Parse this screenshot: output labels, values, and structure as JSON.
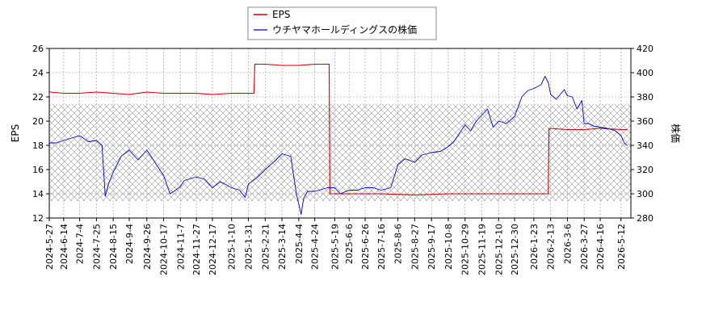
{
  "chart_data": {
    "type": "line",
    "title": "",
    "legend": {
      "placement": "top-center",
      "entries": [
        {
          "name": "EPS",
          "color": "#cc0000"
        },
        {
          "name": "ウチヤマホールディングスの株価",
          "color": "#0000cc"
        }
      ]
    },
    "x_ticks": [
      "2024-5-27",
      "2024-6-14",
      "2024-7-4",
      "2024-7-25",
      "2024-8-15",
      "2024-9-4",
      "2024-9-26",
      "2024-10-17",
      "2024-11-7",
      "2024-11-27",
      "2024-12-17",
      "2025-1-10",
      "2025-1-31",
      "2025-2-21",
      "2025-3-14",
      "2025-4-4",
      "2025-4-24",
      "2025-5-19",
      "2025-6-6",
      "2025-6-26",
      "2025-7-16",
      "2025-8-6",
      "2025-8-27",
      "2025-9-17",
      "2025-10-8",
      "2025-10-29",
      "2025-11-19",
      "2025-12-10",
      "2025-12-30",
      "2026-1-23",
      "2026-2-13",
      "2026-3-6",
      "2026-3-27",
      "2026-4-16",
      "2026-5-12"
    ],
    "y_left": {
      "label": "EPS",
      "ylim": [
        12,
        26
      ],
      "ticks": [
        12,
        14,
        16,
        18,
        20,
        22,
        24,
        26
      ]
    },
    "y_right": {
      "label": "株価",
      "ylim": [
        280,
        420
      ],
      "ticks": [
        280,
        300,
        320,
        340,
        360,
        380,
        400,
        420
      ]
    },
    "shaded_band": {
      "axis": "right",
      "range": [
        294,
        374
      ]
    },
    "grid": true,
    "series": [
      {
        "name": "EPS",
        "axis": "left",
        "color": "#cc0000",
        "points": [
          [
            "2024-5-27",
            22.4
          ],
          [
            "2024-6-14",
            22.3
          ],
          [
            "2024-7-4",
            22.3
          ],
          [
            "2024-7-25",
            22.4
          ],
          [
            "2024-8-15",
            22.3
          ],
          [
            "2024-9-4",
            22.2
          ],
          [
            "2024-9-26",
            22.4
          ],
          [
            "2024-10-17",
            22.3
          ],
          [
            "2024-11-7",
            22.3
          ],
          [
            "2024-11-27",
            22.3
          ],
          [
            "2024-12-17",
            22.2
          ],
          [
            "2025-1-10",
            22.3
          ],
          [
            "2025-1-31",
            22.3
          ],
          [
            "2025-2-7",
            22.3
          ],
          [
            "2025-2-8",
            24.7
          ],
          [
            "2025-2-21",
            24.7
          ],
          [
            "2025-3-14",
            24.6
          ],
          [
            "2025-4-4",
            24.6
          ],
          [
            "2025-4-24",
            24.7
          ],
          [
            "2025-5-12",
            24.7
          ],
          [
            "2025-5-13",
            14.0
          ],
          [
            "2025-5-19",
            14.0
          ],
          [
            "2025-6-6",
            14.0
          ],
          [
            "2025-7-16",
            14.0
          ],
          [
            "2025-8-27",
            13.9
          ],
          [
            "2025-10-8",
            14.0
          ],
          [
            "2025-11-19",
            14.0
          ],
          [
            "2025-12-30",
            14.0
          ],
          [
            "2026-2-10",
            14.0
          ],
          [
            "2026-2-11",
            19.4
          ],
          [
            "2026-3-6",
            19.3
          ],
          [
            "2026-3-27",
            19.3
          ],
          [
            "2026-4-16",
            19.4
          ],
          [
            "2026-5-12",
            19.3
          ],
          [
            "2026-5-20",
            19.3
          ]
        ]
      },
      {
        "name": "ウチヤマホールディングスの株価",
        "axis": "right",
        "color": "#0000cc",
        "points": [
          [
            "2024-5-27",
            342
          ],
          [
            "2024-6-5",
            342
          ],
          [
            "2024-6-14",
            344
          ],
          [
            "2024-6-24",
            346
          ],
          [
            "2024-7-4",
            348
          ],
          [
            "2024-7-15",
            343
          ],
          [
            "2024-7-25",
            344
          ],
          [
            "2024-8-1",
            340
          ],
          [
            "2024-8-5",
            298
          ],
          [
            "2024-8-9",
            308
          ],
          [
            "2024-8-15",
            318
          ],
          [
            "2024-8-25",
            331
          ],
          [
            "2024-9-4",
            336
          ],
          [
            "2024-9-15",
            328
          ],
          [
            "2024-9-26",
            336
          ],
          [
            "2024-10-6",
            326
          ],
          [
            "2024-10-17",
            315
          ],
          [
            "2024-10-25",
            300
          ],
          [
            "2024-11-1",
            303
          ],
          [
            "2024-11-7",
            306
          ],
          [
            "2024-11-12",
            311
          ],
          [
            "2024-11-27",
            314
          ],
          [
            "2024-12-7",
            312
          ],
          [
            "2024-12-17",
            305
          ],
          [
            "2024-12-27",
            310
          ],
          [
            "2025-1-10",
            305
          ],
          [
            "2025-1-20",
            303
          ],
          [
            "2025-1-27",
            297
          ],
          [
            "2025-1-31",
            308
          ],
          [
            "2025-2-10",
            313
          ],
          [
            "2025-2-21",
            320
          ],
          [
            "2025-3-5",
            327
          ],
          [
            "2025-3-14",
            333
          ],
          [
            "2025-3-25",
            331
          ],
          [
            "2025-4-1",
            300
          ],
          [
            "2025-4-7",
            283
          ],
          [
            "2025-4-10",
            296
          ],
          [
            "2025-4-15",
            302
          ],
          [
            "2025-4-24",
            302
          ],
          [
            "2025-5-10",
            305
          ],
          [
            "2025-5-19",
            305
          ],
          [
            "2025-5-26",
            300
          ],
          [
            "2025-6-6",
            303
          ],
          [
            "2025-6-16",
            303
          ],
          [
            "2025-6-26",
            305
          ],
          [
            "2025-7-6",
            305
          ],
          [
            "2025-7-16",
            303
          ],
          [
            "2025-7-28",
            305
          ],
          [
            "2025-8-6",
            324
          ],
          [
            "2025-8-15",
            329
          ],
          [
            "2025-8-27",
            326
          ],
          [
            "2025-9-5",
            332
          ],
          [
            "2025-9-17",
            334
          ],
          [
            "2025-9-28",
            335
          ],
          [
            "2025-10-8",
            339
          ],
          [
            "2025-10-15",
            343
          ],
          [
            "2025-10-29",
            357
          ],
          [
            "2025-11-5",
            352
          ],
          [
            "2025-11-12",
            360
          ],
          [
            "2025-11-19",
            365
          ],
          [
            "2025-11-26",
            370
          ],
          [
            "2025-12-3",
            355
          ],
          [
            "2025-12-10",
            360
          ],
          [
            "2025-12-20",
            358
          ],
          [
            "2025-12-30",
            364
          ],
          [
            "2026-1-8",
            380
          ],
          [
            "2026-1-15",
            385
          ],
          [
            "2026-1-23",
            387
          ],
          [
            "2026-2-1",
            390
          ],
          [
            "2026-2-6",
            397
          ],
          [
            "2026-2-10",
            392
          ],
          [
            "2026-2-13",
            382
          ],
          [
            "2026-2-20",
            378
          ],
          [
            "2026-3-2",
            386
          ],
          [
            "2026-3-6",
            381
          ],
          [
            "2026-3-12",
            380
          ],
          [
            "2026-3-18",
            370
          ],
          [
            "2026-3-24",
            377
          ],
          [
            "2026-3-27",
            358
          ],
          [
            "2026-4-2",
            358
          ],
          [
            "2026-4-7",
            356
          ],
          [
            "2026-4-16",
            355
          ],
          [
            "2026-4-25",
            354
          ],
          [
            "2026-5-5",
            352
          ],
          [
            "2026-5-12",
            348
          ],
          [
            "2026-5-16",
            342
          ],
          [
            "2026-5-20",
            340
          ]
        ]
      }
    ]
  }
}
